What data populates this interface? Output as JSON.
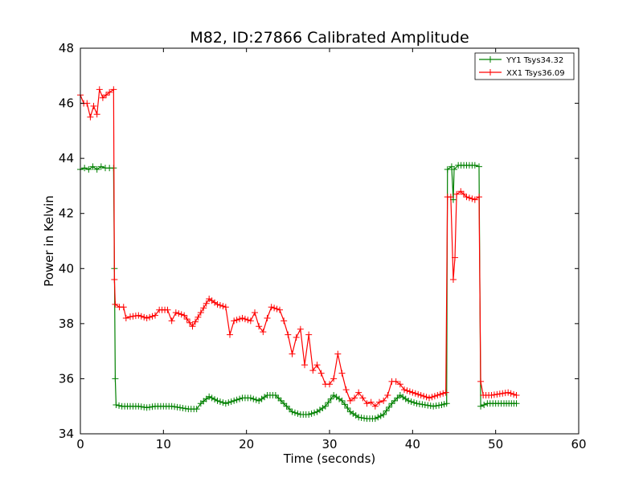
{
  "chart_data": {
    "type": "line",
    "title": "M82, ID:27866 Calibrated Amplitude",
    "xlabel": "Time (seconds)",
    "ylabel": "Power in Kelvin",
    "xlim": [
      0,
      60
    ],
    "ylim": [
      34,
      48
    ],
    "xticks": [
      0,
      10,
      20,
      30,
      40,
      50,
      60
    ],
    "yticks": [
      34,
      36,
      38,
      40,
      42,
      44,
      46,
      48
    ],
    "grid": false,
    "legend_position": "top-right",
    "marker": "+",
    "series": [
      {
        "name": "YY1 Tsys34.32",
        "color": "#008000",
        "points": [
          [
            0.0,
            43.6
          ],
          [
            0.5,
            43.65
          ],
          [
            1.0,
            43.6
          ],
          [
            1.5,
            43.7
          ],
          [
            2.0,
            43.6
          ],
          [
            2.5,
            43.7
          ],
          [
            3.0,
            43.65
          ],
          [
            3.5,
            43.65
          ],
          [
            4.0,
            43.65
          ],
          [
            4.1,
            40.0
          ],
          [
            4.2,
            36.0
          ],
          [
            4.3,
            35.05
          ],
          [
            5.0,
            35.0
          ],
          [
            6.0,
            35.0
          ],
          [
            7.0,
            35.0
          ],
          [
            8.0,
            34.95
          ],
          [
            9.0,
            35.0
          ],
          [
            10.0,
            35.0
          ],
          [
            11.0,
            35.0
          ],
          [
            12.0,
            34.95
          ],
          [
            13.0,
            34.9
          ],
          [
            14.0,
            34.9
          ],
          [
            14.5,
            35.1
          ],
          [
            15.5,
            35.35
          ],
          [
            16.5,
            35.2
          ],
          [
            17.5,
            35.1
          ],
          [
            18.5,
            35.2
          ],
          [
            19.5,
            35.3
          ],
          [
            20.5,
            35.3
          ],
          [
            21.5,
            35.2
          ],
          [
            22.5,
            35.4
          ],
          [
            23.5,
            35.4
          ],
          [
            24.5,
            35.1
          ],
          [
            25.5,
            34.8
          ],
          [
            26.5,
            34.7
          ],
          [
            27.5,
            34.7
          ],
          [
            28.5,
            34.8
          ],
          [
            29.5,
            35.0
          ],
          [
            30.5,
            35.4
          ],
          [
            31.5,
            35.2
          ],
          [
            32.5,
            34.8
          ],
          [
            33.5,
            34.6
          ],
          [
            34.5,
            34.55
          ],
          [
            35.5,
            34.55
          ],
          [
            36.5,
            34.7
          ],
          [
            37.5,
            35.1
          ],
          [
            38.5,
            35.4
          ],
          [
            39.5,
            35.2
          ],
          [
            40.5,
            35.1
          ],
          [
            41.5,
            35.05
          ],
          [
            42.5,
            35.0
          ],
          [
            43.5,
            35.05
          ],
          [
            44.1,
            35.1
          ],
          [
            44.2,
            43.6
          ],
          [
            44.7,
            43.7
          ],
          [
            44.9,
            42.5
          ],
          [
            45.0,
            43.6
          ],
          [
            45.5,
            43.75
          ],
          [
            46.5,
            43.75
          ],
          [
            47.5,
            43.75
          ],
          [
            48.0,
            43.7
          ],
          [
            48.2,
            35.0
          ],
          [
            49.0,
            35.1
          ],
          [
            50.0,
            35.1
          ],
          [
            51.0,
            35.1
          ],
          [
            52.5,
            35.1
          ]
        ]
      },
      {
        "name": "XX1 Tsys36.09",
        "color": "#ff0000",
        "points": [
          [
            0.0,
            46.3
          ],
          [
            0.4,
            46.0
          ],
          [
            0.8,
            46.0
          ],
          [
            1.2,
            45.5
          ],
          [
            1.6,
            45.9
          ],
          [
            2.0,
            45.6
          ],
          [
            2.3,
            46.5
          ],
          [
            2.7,
            46.2
          ],
          [
            3.1,
            46.3
          ],
          [
            3.5,
            46.4
          ],
          [
            4.0,
            46.5
          ],
          [
            4.1,
            39.6
          ],
          [
            4.2,
            38.7
          ],
          [
            4.7,
            38.6
          ],
          [
            5.2,
            38.6
          ],
          [
            5.5,
            38.2
          ],
          [
            6.0,
            38.25
          ],
          [
            7.0,
            38.3
          ],
          [
            8.0,
            38.2
          ],
          [
            9.0,
            38.3
          ],
          [
            9.5,
            38.5
          ],
          [
            10.5,
            38.5
          ],
          [
            11.0,
            38.1
          ],
          [
            11.5,
            38.4
          ],
          [
            12.5,
            38.3
          ],
          [
            13.5,
            37.9
          ],
          [
            14.5,
            38.4
          ],
          [
            15.5,
            38.9
          ],
          [
            16.5,
            38.7
          ],
          [
            17.5,
            38.6
          ],
          [
            18.0,
            37.6
          ],
          [
            18.5,
            38.1
          ],
          [
            19.5,
            38.2
          ],
          [
            20.5,
            38.1
          ],
          [
            21.0,
            38.4
          ],
          [
            21.5,
            37.9
          ],
          [
            22.0,
            37.7
          ],
          [
            22.5,
            38.2
          ],
          [
            23.0,
            38.6
          ],
          [
            24.0,
            38.5
          ],
          [
            24.5,
            38.1
          ],
          [
            25.0,
            37.6
          ],
          [
            25.5,
            36.9
          ],
          [
            26.0,
            37.5
          ],
          [
            26.5,
            37.8
          ],
          [
            27.0,
            36.5
          ],
          [
            27.5,
            37.6
          ],
          [
            28.0,
            36.3
          ],
          [
            28.5,
            36.5
          ],
          [
            29.0,
            36.2
          ],
          [
            29.5,
            35.8
          ],
          [
            30.0,
            35.8
          ],
          [
            30.5,
            36.0
          ],
          [
            31.0,
            36.9
          ],
          [
            31.5,
            36.2
          ],
          [
            32.0,
            35.6
          ],
          [
            32.5,
            35.2
          ],
          [
            33.0,
            35.3
          ],
          [
            33.5,
            35.5
          ],
          [
            34.0,
            35.3
          ],
          [
            34.5,
            35.1
          ],
          [
            35.0,
            35.15
          ],
          [
            35.5,
            35.0
          ],
          [
            36.0,
            35.15
          ],
          [
            36.5,
            35.2
          ],
          [
            37.0,
            35.4
          ],
          [
            37.5,
            35.9
          ],
          [
            38.0,
            35.9
          ],
          [
            38.5,
            35.8
          ],
          [
            39.0,
            35.6
          ],
          [
            40.0,
            35.5
          ],
          [
            41.0,
            35.4
          ],
          [
            42.0,
            35.3
          ],
          [
            43.0,
            35.4
          ],
          [
            44.0,
            35.5
          ],
          [
            44.2,
            42.6
          ],
          [
            44.6,
            42.6
          ],
          [
            44.9,
            39.6
          ],
          [
            45.1,
            40.4
          ],
          [
            45.3,
            42.7
          ],
          [
            45.8,
            42.8
          ],
          [
            46.5,
            42.6
          ],
          [
            47.5,
            42.5
          ],
          [
            48.0,
            42.6
          ],
          [
            48.2,
            35.9
          ],
          [
            48.5,
            35.4
          ],
          [
            49.5,
            35.4
          ],
          [
            50.5,
            35.45
          ],
          [
            51.5,
            35.5
          ],
          [
            52.5,
            35.4
          ]
        ]
      }
    ]
  }
}
